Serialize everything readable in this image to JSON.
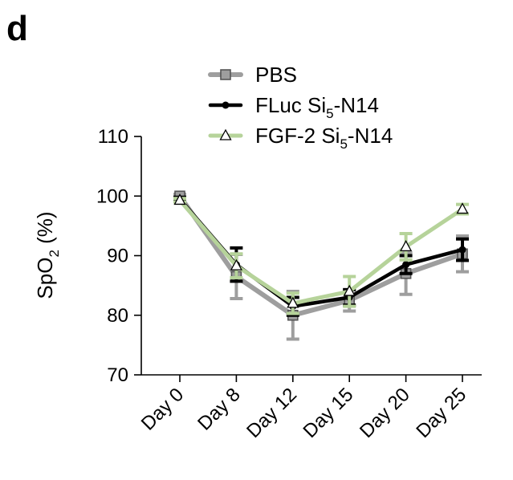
{
  "panel_label": "d",
  "chart_data": {
    "type": "line",
    "title": "",
    "xlabel": "",
    "ylabel": "SpO",
    "ylabel_sub": "2",
    "ylabel_suffix": " (%)",
    "categories": [
      "Day 0",
      "Day 8",
      "Day 12",
      "Day 15",
      "Day 20",
      "Day 25"
    ],
    "ylim": [
      70,
      110
    ],
    "yticks": [
      "70",
      "80",
      "90",
      "100",
      "110"
    ],
    "grid": false,
    "legend_position": "top",
    "series": [
      {
        "name": "PBS",
        "name_sub": "",
        "name_suffix": "",
        "color": "#9e9e9e",
        "marker": "square",
        "values": [
          100,
          86.5,
          80,
          82.5,
          87,
          90.3
        ],
        "errors": [
          0.3,
          3.7,
          4.0,
          1.8,
          3.5,
          3.0
        ]
      },
      {
        "name": "FLuc Si",
        "name_sub": "5",
        "name_suffix": "-N14",
        "color": "#000000",
        "marker": "circle",
        "values": [
          99.5,
          88.5,
          81.5,
          83,
          88.5,
          91
        ],
        "errors": [
          0.3,
          2.8,
          1.5,
          1.3,
          1.5,
          1.8
        ]
      },
      {
        "name": "FGF-2 Si",
        "name_sub": "5",
        "name_suffix": "-N14",
        "color": "#b6d39a",
        "marker": "triangle",
        "values": [
          99.3,
          88.3,
          82,
          84,
          91.5,
          97.8
        ],
        "errors": [
          0.3,
          2.0,
          1.7,
          2.5,
          2.2,
          0.8
        ]
      }
    ]
  }
}
